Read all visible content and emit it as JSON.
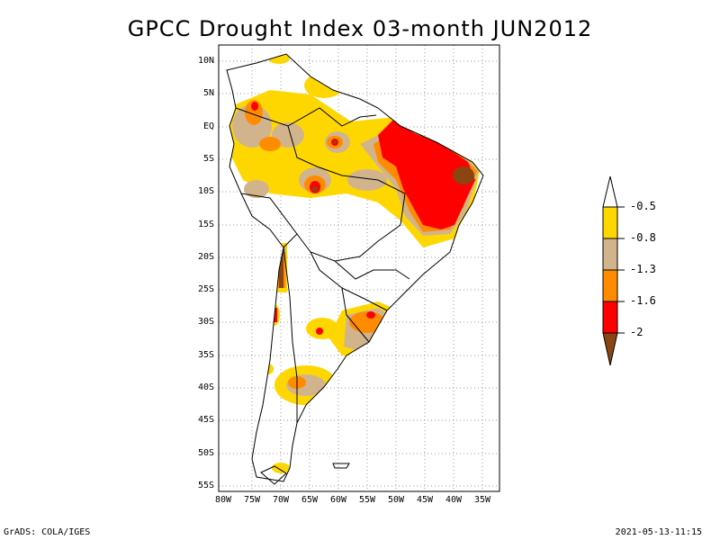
{
  "title": "GPCC Drought Index 03-month JUN2012",
  "lat_labels": [
    "10N",
    "5N",
    "EQ",
    "5S",
    "10S",
    "15S",
    "20S",
    "25S",
    "30S",
    "35S",
    "40S",
    "45S",
    "50S",
    "55S"
  ],
  "lon_labels": [
    "80W",
    "75W",
    "70W",
    "65W",
    "60W",
    "55W",
    "50W",
    "45W",
    "40W",
    "35W"
  ],
  "legend": {
    "labels": [
      "-0.5",
      "-0.8",
      "-1.3",
      "-1.6",
      "-2"
    ],
    "colors": [
      "#ffd700",
      "#d2b48c",
      "#ff8c00",
      "#ff0000",
      "#8b4513"
    ]
  },
  "footer_left": "GrADS: COLA/IGES",
  "footer_right": "2021-05-13-11:15"
}
